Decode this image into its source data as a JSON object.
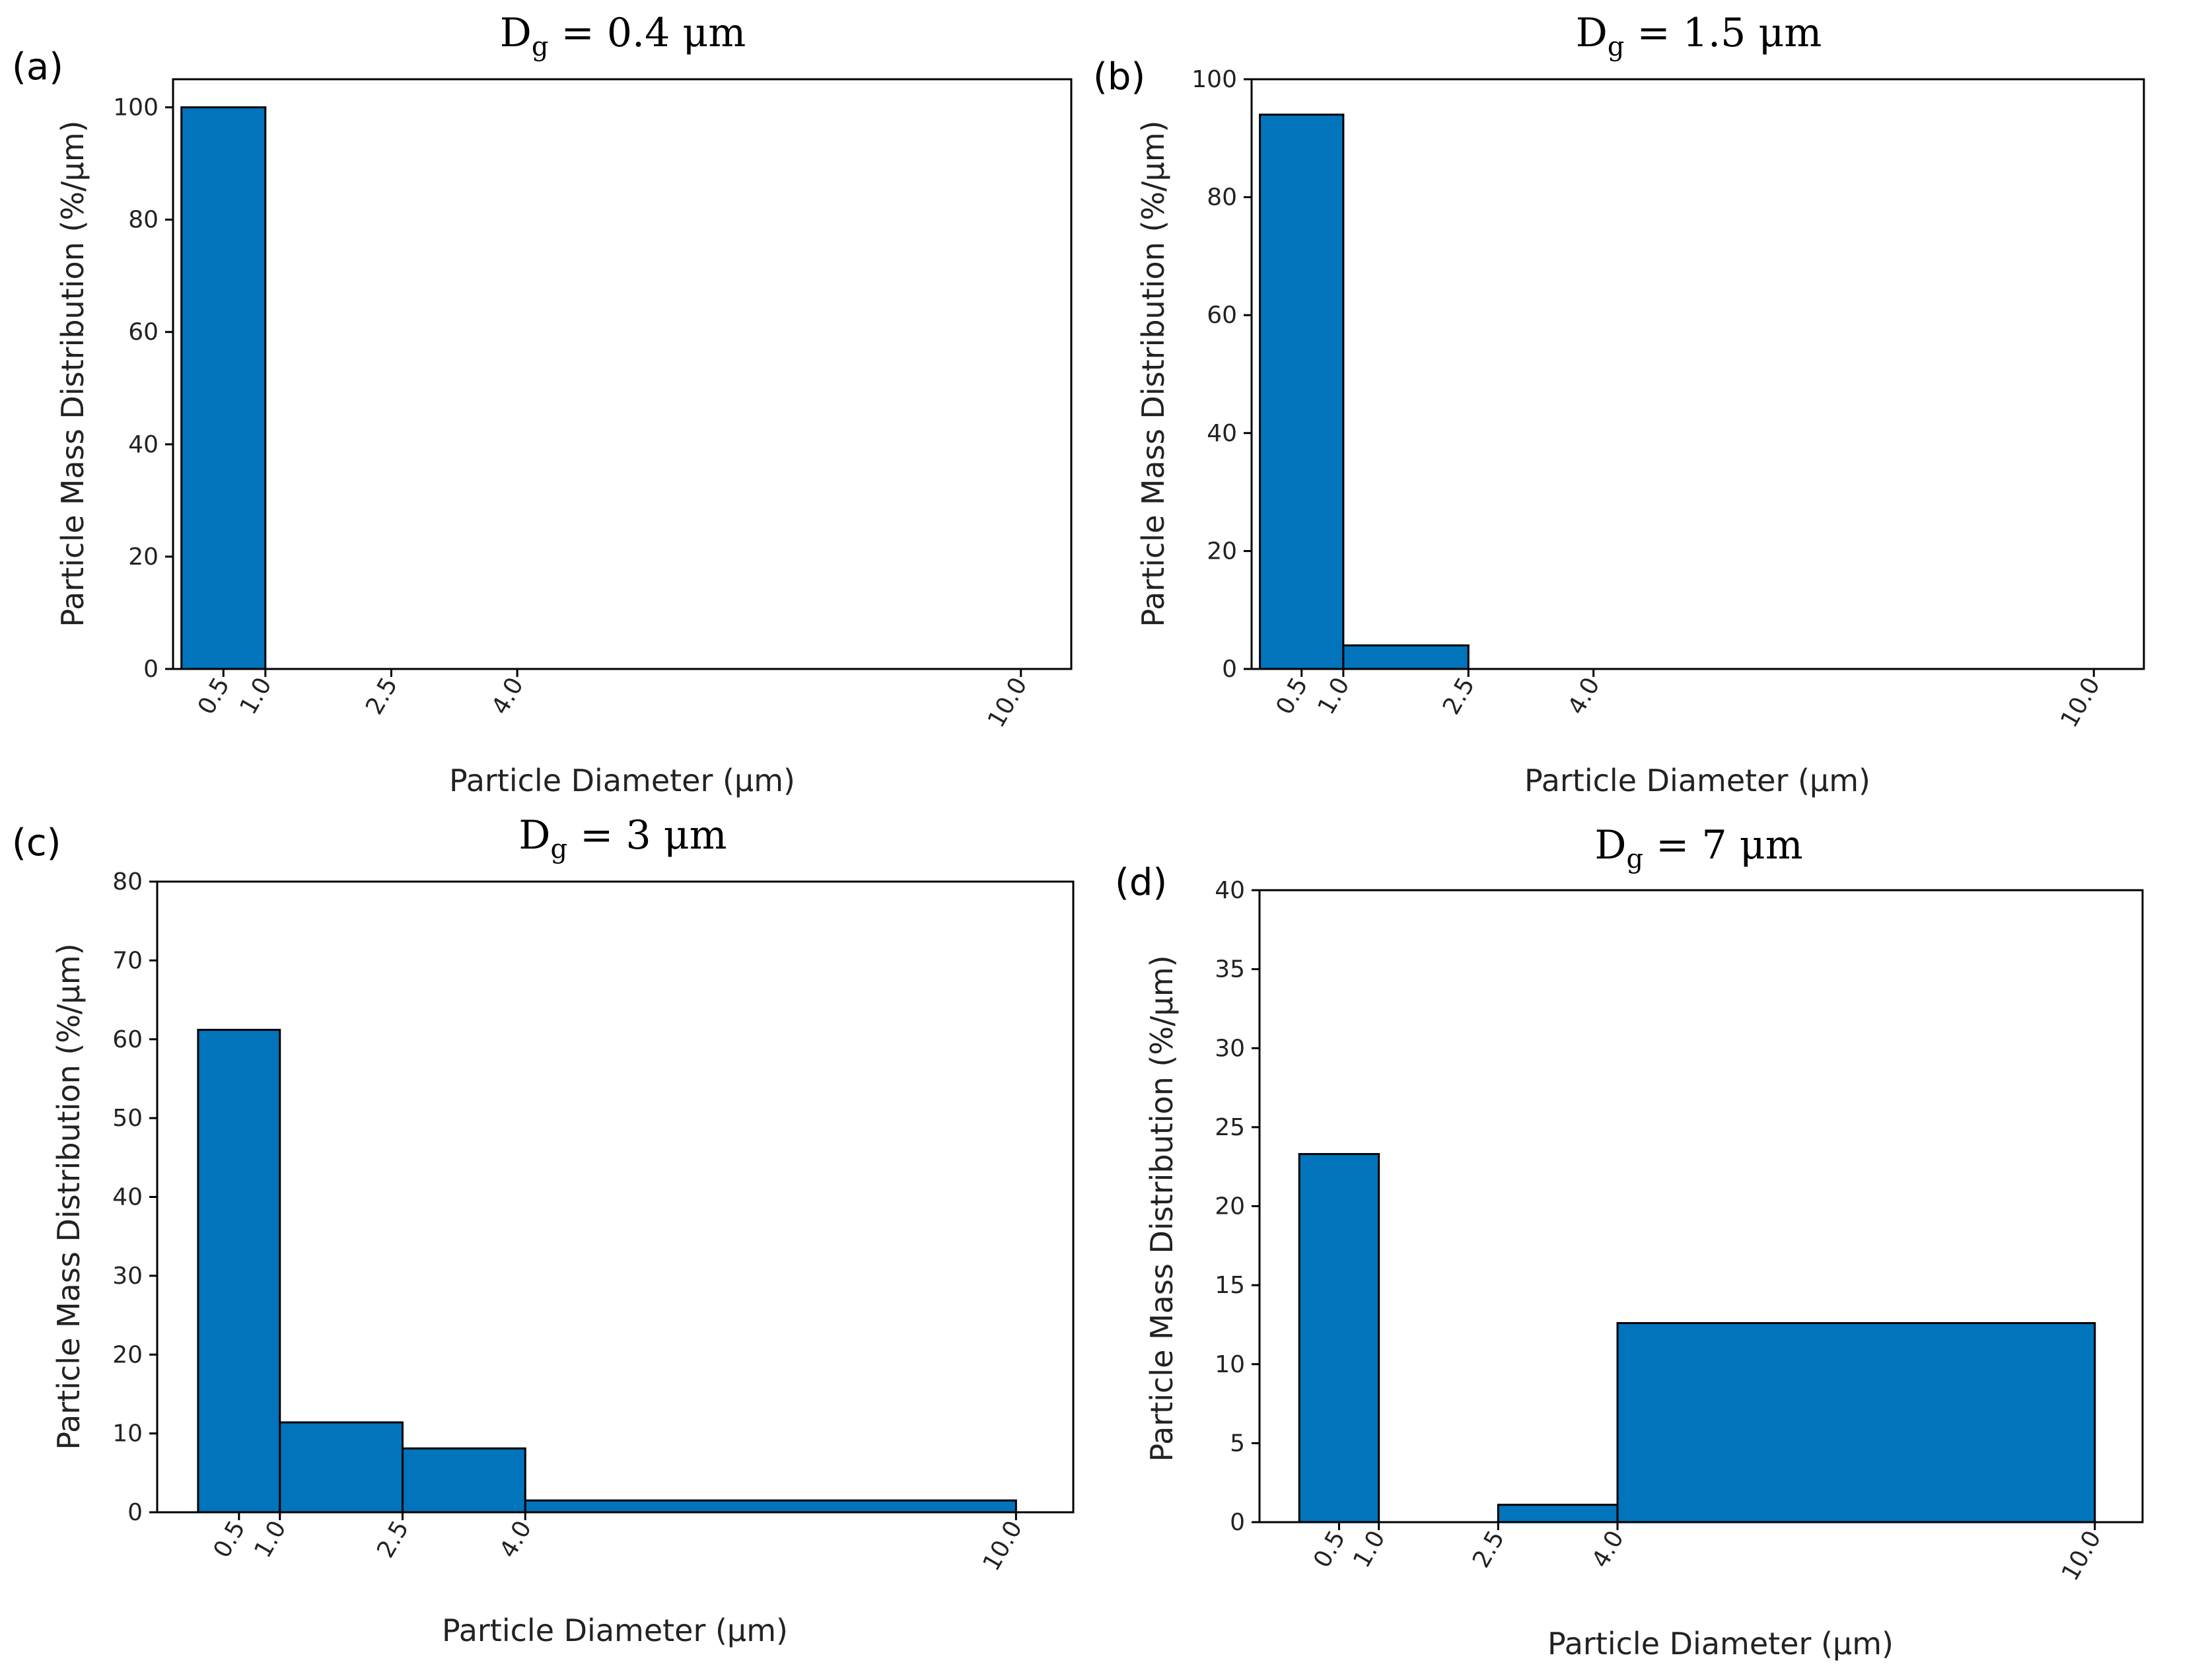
{
  "colors": {
    "bar": "#0174BC",
    "edge": "#000000"
  },
  "chart_data": [
    {
      "type": "bar",
      "panel_label": "(a)",
      "title_main": "D",
      "title_sub": "g",
      "title_rest": " = 0.4 μm",
      "xlabel": "Particle Diameter (μm)",
      "ylabel": "Particle Mass Distribution (%/μm)",
      "xticks": [
        0.5,
        1.0,
        2.5,
        4.0,
        10.0
      ],
      "xtick_labels": [
        "0.5",
        "1.0",
        "2.5",
        "4.0",
        "10.0"
      ],
      "xlim": [
        -0.1,
        10.6
      ],
      "ylim": [
        0,
        105
      ],
      "yticks": [
        0,
        20,
        40,
        60,
        80,
        100
      ],
      "ytick_labels": [
        "0",
        "20",
        "40",
        "60",
        "80",
        "100"
      ],
      "bins": [
        [
          0,
          1.0
        ],
        [
          1.0,
          2.5
        ],
        [
          2.5,
          4.0
        ],
        [
          4.0,
          10.0
        ]
      ],
      "values": [
        100,
        0,
        0,
        0
      ]
    },
    {
      "type": "bar",
      "panel_label": "(b)",
      "title_main": "D",
      "title_sub": "g",
      "title_rest": " = 1.5 μm",
      "xlabel": "Particle Diameter (μm)",
      "ylabel": "Particle Mass Distribution (%/μm)",
      "xticks": [
        0.5,
        1.0,
        2.5,
        4.0,
        10.0
      ],
      "xtick_labels": [
        "0.5",
        "1.0",
        "2.5",
        "4.0",
        "10.0"
      ],
      "xlim": [
        -0.1,
        10.6
      ],
      "ylim": [
        0,
        100
      ],
      "yticks": [
        0,
        20,
        40,
        60,
        80,
        100
      ],
      "ytick_labels": [
        "0",
        "20",
        "40",
        "60",
        "80",
        "100"
      ],
      "bins": [
        [
          0,
          1.0
        ],
        [
          1.0,
          2.5
        ],
        [
          2.5,
          4.0
        ],
        [
          4.0,
          10.0
        ]
      ],
      "values": [
        94,
        4,
        0,
        0
      ]
    },
    {
      "type": "bar",
      "panel_label": "(c)",
      "title_main": "D",
      "title_sub": "g",
      "title_rest": " = 3 μm",
      "xlabel": "Particle Diameter (μm)",
      "ylabel": "Particle Mass Distribution (%/μm)",
      "xticks": [
        0.5,
        1.0,
        2.5,
        4.0,
        10.0
      ],
      "xtick_labels": [
        "0.5",
        "1.0",
        "2.5",
        "4.0",
        "10.0"
      ],
      "xlim": [
        -0.5,
        10.7
      ],
      "ylim": [
        0,
        80
      ],
      "yticks": [
        0,
        10,
        20,
        30,
        40,
        50,
        60,
        70,
        80
      ],
      "ytick_labels": [
        "0",
        "10",
        "20",
        "30",
        "40",
        "50",
        "60",
        "70",
        "80"
      ],
      "bins": [
        [
          0,
          1.0
        ],
        [
          1.0,
          2.5
        ],
        [
          2.5,
          4.0
        ],
        [
          4.0,
          10.0
        ]
      ],
      "values": [
        61.2,
        11.4,
        8.1,
        1.5
      ]
    },
    {
      "type": "bar",
      "panel_label": "(d)",
      "title_main": "D",
      "title_sub": "g",
      "title_rest": " = 7 μm",
      "xlabel": "Particle Diameter (μm)",
      "ylabel": "Particle Mass Distribution (%/μm)",
      "xticks": [
        0.5,
        1.0,
        2.5,
        4.0,
        10.0
      ],
      "xtick_labels": [
        "0.5",
        "1.0",
        "2.5",
        "4.0",
        "10.0"
      ],
      "xlim": [
        -0.5,
        10.6
      ],
      "ylim": [
        0,
        40
      ],
      "yticks": [
        0,
        5,
        10,
        15,
        20,
        25,
        30,
        35,
        40
      ],
      "ytick_labels": [
        "0",
        "5",
        "10",
        "15",
        "20",
        "25",
        "30",
        "35",
        "40"
      ],
      "bins": [
        [
          0,
          1.0
        ],
        [
          1.0,
          2.5
        ],
        [
          2.5,
          4.0
        ],
        [
          4.0,
          10.0
        ]
      ],
      "values": [
        23.3,
        0,
        1.1,
        12.6
      ]
    }
  ]
}
